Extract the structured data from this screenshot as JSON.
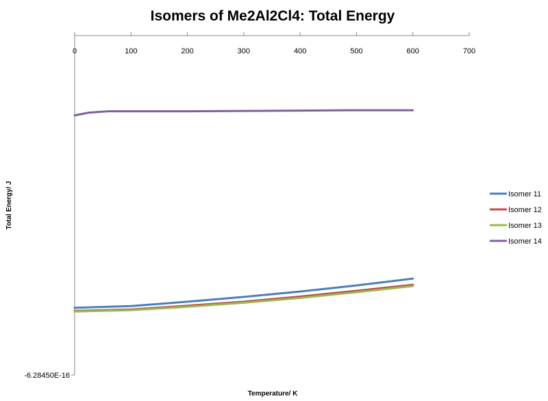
{
  "chart_data": {
    "type": "line",
    "title": "Isomers of Me2Al2Cl4: Total Energy",
    "xlabel": "Temperature/ K",
    "ylabel": "Total Energy/ J",
    "xlim": [
      0,
      700
    ],
    "x_ticks": [
      0,
      100,
      200,
      300,
      400,
      500,
      600,
      700
    ],
    "y_tick_label": "-6.28450E-16",
    "ylim": [
      0,
      100
    ],
    "grid": false,
    "legend_position": "right",
    "x_axis_position": "top",
    "series": [
      {
        "name": "Isomer 11",
        "color": "#4a7ebb",
        "x": [
          0,
          100,
          200,
          300,
          400,
          500,
          600
        ],
        "y": [
          19.8,
          20.3,
          21.6,
          23.0,
          24.6,
          26.4,
          28.4
        ]
      },
      {
        "name": "Isomer 12",
        "color": "#be4b48",
        "x": [
          0,
          100,
          200,
          300,
          400,
          500,
          600
        ],
        "y": [
          18.9,
          19.3,
          20.4,
          21.6,
          23.1,
          24.8,
          26.6
        ]
      },
      {
        "name": "Isomer 13",
        "color": "#98b954",
        "x": [
          0,
          100,
          200,
          300,
          400,
          500,
          600
        ],
        "y": [
          18.7,
          19.1,
          20.1,
          21.3,
          22.7,
          24.4,
          26.2
        ]
      },
      {
        "name": "Isomer 14",
        "color": "#7d60a0",
        "x": [
          0,
          25,
          50,
          60,
          100,
          200,
          300,
          400,
          500,
          600
        ],
        "y": [
          76.5,
          77.3,
          77.6,
          77.7,
          77.7,
          77.7,
          77.8,
          77.9,
          78.0,
          78.0
        ]
      }
    ]
  }
}
